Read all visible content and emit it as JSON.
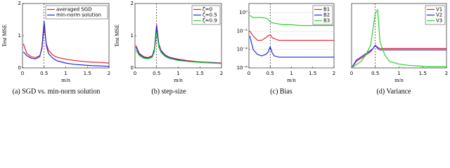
{
  "chart_data": [
    {
      "type": "line",
      "caption": "(a) SGD vs. min-norm solution",
      "xlabel": "m/n",
      "ylabel": "Test MSE",
      "x": [
        0.02,
        0.1,
        0.2,
        0.3,
        0.4,
        0.45,
        0.5,
        0.55,
        0.6,
        0.7,
        0.8,
        1,
        1.2,
        1.4,
        1.6,
        1.8,
        2
      ],
      "xlim": [
        0,
        2
      ],
      "xticks": [
        0,
        0.5,
        1,
        1.5,
        2
      ],
      "ylim": [
        0,
        2
      ],
      "yticks": [
        0,
        1,
        2
      ],
      "series": [
        {
          "name": "averaged SGD",
          "color": "#e8202a",
          "values": [
            0.75,
            0.45,
            0.35,
            0.32,
            0.38,
            0.6,
            1.3,
            0.75,
            0.55,
            0.4,
            0.33,
            0.27,
            0.23,
            0.2,
            0.18,
            0.17,
            0.15
          ]
        },
        {
          "name": "min-norm solution",
          "color": "#1f2bd6",
          "values": [
            0.5,
            0.38,
            0.3,
            0.28,
            0.35,
            0.65,
            1.45,
            0.7,
            0.45,
            0.3,
            0.22,
            0.15,
            0.11,
            0.09,
            0.07,
            0.06,
            0.05
          ]
        }
      ]
    },
    {
      "type": "line",
      "caption": "(b) step-size",
      "xlabel": "m/n",
      "ylabel": "Test MSE",
      "x": [
        0.02,
        0.1,
        0.2,
        0.3,
        0.4,
        0.45,
        0.5,
        0.55,
        0.6,
        0.7,
        0.8,
        1,
        1.2,
        1.4,
        1.6,
        1.8,
        2
      ],
      "xlim": [
        0,
        2
      ],
      "xticks": [
        0,
        0.5,
        1,
        1.5,
        2
      ],
      "ylim": [
        0,
        2
      ],
      "yticks": [
        0,
        1,
        2
      ],
      "series": [
        {
          "name": "ζ=0",
          "color": "#e8202a",
          "values": [
            0.7,
            0.45,
            0.35,
            0.32,
            0.38,
            0.6,
            1.35,
            0.75,
            0.55,
            0.4,
            0.33,
            0.27,
            0.23,
            0.2,
            0.18,
            0.17,
            0.15
          ]
        },
        {
          "name": "ζ=0.5",
          "color": "#1f2bd6",
          "values": [
            0.65,
            0.42,
            0.33,
            0.3,
            0.36,
            0.58,
            1.3,
            0.72,
            0.52,
            0.38,
            0.31,
            0.25,
            0.21,
            0.19,
            0.17,
            0.16,
            0.14
          ]
        },
        {
          "name": "ζ=0.9",
          "color": "#2fd02f",
          "values": [
            0.55,
            0.38,
            0.3,
            0.28,
            0.33,
            0.5,
            1.1,
            0.65,
            0.48,
            0.35,
            0.29,
            0.23,
            0.2,
            0.18,
            0.16,
            0.15,
            0.13
          ]
        }
      ]
    },
    {
      "type": "line",
      "caption": "(c) Bias",
      "xlabel": "m/n",
      "yscale": "log",
      "grid": true,
      "x": [
        0.02,
        0.1,
        0.2,
        0.3,
        0.4,
        0.45,
        0.5,
        0.55,
        0.6,
        0.7,
        0.8,
        1,
        1.2,
        1.4,
        1.6,
        1.8,
        2
      ],
      "xlim": [
        0,
        2
      ],
      "xticks": [
        0,
        0.5,
        1,
        1.5,
        2
      ],
      "ylim": [
        1e-06,
        10
      ],
      "yticks": [
        {
          "value": 1e-06,
          "label": "10⁻⁶"
        },
        {
          "value": 0.0001,
          "label": "10⁻⁴"
        },
        {
          "value": 0.01,
          "label": "10⁻²"
        },
        {
          "value": 1,
          "label": "10⁰"
        }
      ],
      "series": [
        {
          "name": "B1",
          "color": "#e8202a",
          "values": [
            0.01,
            0.003,
            0.001,
            0.001,
            0.002,
            0.003,
            0.004,
            0.002,
            0.0015,
            0.001,
            0.001,
            0.001,
            0.001,
            0.001,
            0.001,
            0.001,
            0.001
          ]
        },
        {
          "name": "B2",
          "color": "#1f2bd6",
          "values": [
            0.003,
            0.0001,
            3e-05,
            2e-05,
            3e-05,
            5e-05,
            0.0002,
            4e-05,
            2e-05,
            1.5e-05,
            1.5e-05,
            1.5e-05,
            1.5e-05,
            1.5e-05,
            1.5e-05,
            1.5e-05,
            1.5e-05
          ]
        },
        {
          "name": "B3",
          "color": "#2fd02f",
          "values": [
            0.5,
            0.3,
            0.3,
            0.3,
            0.25,
            0.2,
            0.1,
            0.08,
            0.07,
            0.06,
            0.05,
            0.05,
            0.04,
            0.04,
            0.04,
            0.04,
            0.04
          ]
        }
      ]
    },
    {
      "type": "line",
      "caption": "(d) Variance",
      "xlabel": "m/n",
      "x": [
        0.02,
        0.1,
        0.2,
        0.3,
        0.4,
        0.45,
        0.5,
        0.55,
        0.6,
        0.7,
        0.8,
        1,
        1.2,
        1.4,
        1.6,
        1.8,
        2
      ],
      "xlim": [
        0,
        2
      ],
      "xticks": [
        0,
        0.5,
        1,
        1.5,
        2
      ],
      "ylim": [
        0,
        1
      ],
      "series": [
        {
          "name": "V1",
          "color": "#e8202a",
          "values": [
            0.02,
            0.1,
            0.15,
            0.2,
            0.25,
            0.3,
            0.35,
            0.32,
            0.3,
            0.3,
            0.3,
            0.3,
            0.3,
            0.3,
            0.3,
            0.3,
            0.3
          ]
        },
        {
          "name": "V2",
          "color": "#1f2bd6",
          "values": [
            0.02,
            0.12,
            0.17,
            0.22,
            0.27,
            0.3,
            0.35,
            0.3,
            0.28,
            0.28,
            0.28,
            0.28,
            0.28,
            0.28,
            0.28,
            0.28,
            0.28
          ]
        },
        {
          "name": "V3",
          "color": "#2fd02f",
          "values": [
            0.01,
            0.05,
            0.1,
            0.2,
            0.35,
            0.6,
            0.85,
            0.9,
            0.4,
            0.2,
            0.1,
            0.06,
            0.04,
            0.03,
            0.02,
            0.02,
            0.02
          ]
        }
      ]
    }
  ]
}
